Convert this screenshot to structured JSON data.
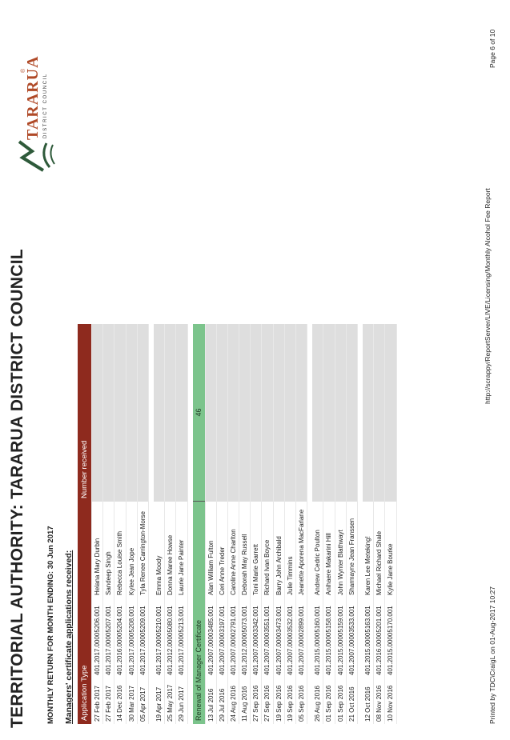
{
  "title": "TERRITORIAL AUTHORITY: TARARUA DISTRICT COUNCIL",
  "subtitle": "MONTHLY RETURN FOR MONTH ENDING: 30 Jun 2017",
  "section": "Managers' certificate applications received:",
  "logo": {
    "name": "TARARUA",
    "sub": "DISTRICT COUNCIL",
    "reg": "®",
    "accent": "#b04a28"
  },
  "table": {
    "col_type": "Application Type",
    "col_number": "Number received",
    "renewal_label": "Renewal of Manager Certificate",
    "renewal_count": "46",
    "new_rows": [
      {
        "date": "27 Feb 2017",
        "ref": "401.2017.00005206.001",
        "name": "Helana Mary Durbin"
      },
      {
        "date": "27 Feb 2017",
        "ref": "401.2017.00005207.001",
        "name": "Sandeep Singh"
      },
      {
        "date": "14 Dec 2016",
        "ref": "401.2016.00005204.001",
        "name": "Rebecca Louise Smith"
      },
      {
        "date": "30 Mar 2017",
        "ref": "401.2017.00005208.001",
        "name": "Kylee Jean Jope"
      },
      {
        "date": "05 Apr 2017",
        "ref": "401.2017.00005209.001",
        "name": "Tyla Renee Carrington-Morse"
      },
      {
        "date": "19 Apr 2017",
        "ref": "401.2017.00005210.001",
        "name": "Emma Moody"
      },
      {
        "date": "25 May 2017",
        "ref": "401.2012.00005080.001",
        "name": "Donna Maree Howse"
      },
      {
        "date": "29 Jun 2017",
        "ref": "401.2017.00005213.001",
        "name": "Laurie Jane Painter"
      }
    ],
    "renewal_rows": [
      {
        "date": "13 Jul 2016",
        "ref": "401.2007.00003485.001",
        "name": "Alan William Fulton"
      },
      {
        "date": "29 Jul 2016",
        "ref": "401.2007.00003197.001",
        "name": "Ceri Anne Treder"
      },
      {
        "date": "24 Aug 2016",
        "ref": "401.2007.00002791.001",
        "name": "Caroline Anne Charlton"
      },
      {
        "date": "11 Aug 2016",
        "ref": "401.2012.00005073.001",
        "name": "Deborah May Russell"
      },
      {
        "date": "27 Sep 2016",
        "ref": "401.2007.00003342.001",
        "name": "Toni Marie Garrett"
      },
      {
        "date": "27 Sep 2016",
        "ref": "401.2007.00003551.001",
        "name": "Richard Ivan Boyce"
      },
      {
        "date": "19 Sep 2016",
        "ref": "401.2007.00003473.001",
        "name": "Barry John Archibald"
      },
      {
        "date": "19 Sep 2016",
        "ref": "401.2007.00003532.001",
        "name": "Julie Timmins"
      },
      {
        "date": "05 Sep 2016",
        "ref": "401.2007.00002899.001",
        "name": "Jeanette Aporena MacFarlane"
      },
      {
        "date": "26 Aug 2016",
        "ref": "401.2015.00005160.001",
        "name": "Andrew Cedric Poulton"
      },
      {
        "date": "01 Sep 2016",
        "ref": "401.2015.00005158.001",
        "name": "Anihaere Makarini Hill"
      },
      {
        "date": "01 Sep 2016",
        "ref": "401.2015.00005159.001",
        "name": "John Wynter Blathwayt"
      },
      {
        "date": "21 Oct 2016",
        "ref": "401.2007.00003533.001",
        "name": "Sharmayne Jean Franssen"
      },
      {
        "date": "12 Oct 2016",
        "ref": "401.2015.00005163.001",
        "name": "Karen Lee Meteking!"
      },
      {
        "date": "08 Nov 2016",
        "ref": "401.2016.00005201.001",
        "name": "Michael Richard Shale"
      },
      {
        "date": "10 Nov 2016",
        "ref": "401.2015.00005170.001",
        "name": "Kylie Jane Bourke"
      }
    ]
  },
  "footer": {
    "printed": "Printed by TDC\\CraigL on 01-Aug-2017 10:27",
    "path": "http://scrappy/ReportServer/LIVE/Licensing/Monthly Alcohol Fee Report",
    "page": "Page 6 of 10"
  }
}
